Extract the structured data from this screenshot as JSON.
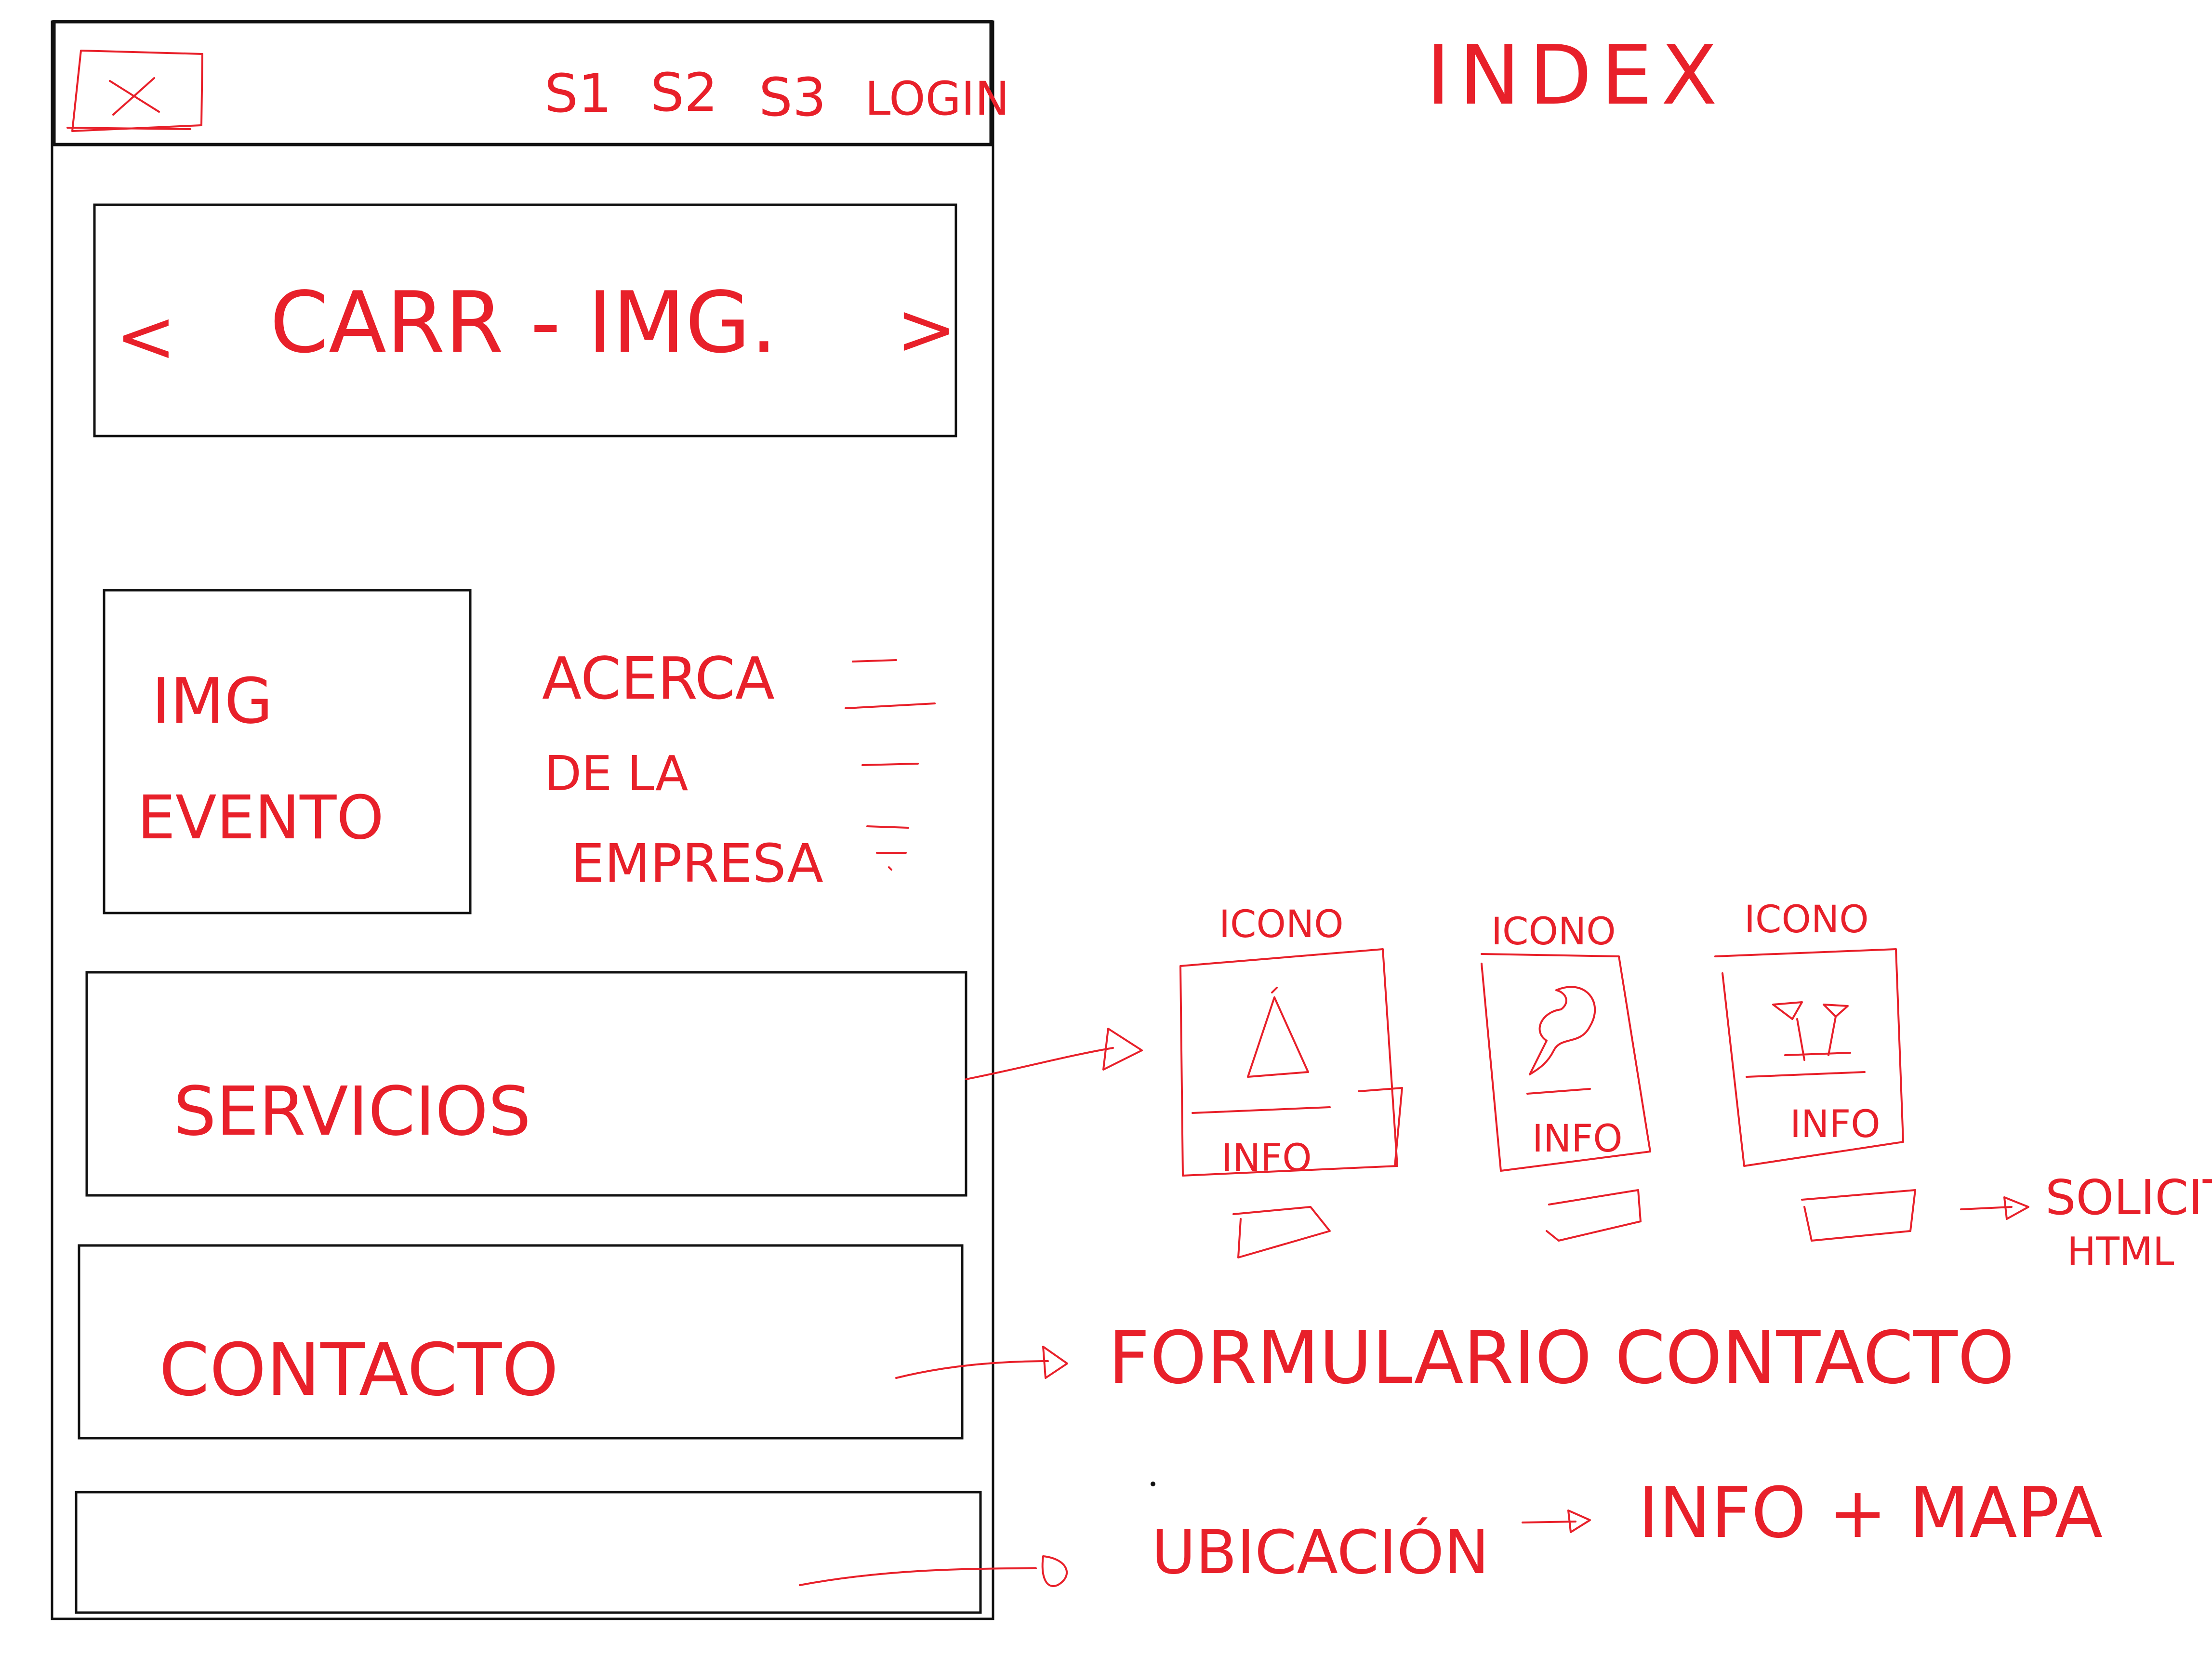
{
  "colors": {
    "ink": "#e8202a",
    "frame": "#111111",
    "background": "#ffffff"
  },
  "page_title": "INDEX",
  "navbar": {
    "logo_icon": "crossed-box-icon",
    "links": [
      "S1",
      "S2",
      "S3",
      "LOGIN"
    ]
  },
  "carousel": {
    "label": "CARR - IMG.",
    "prev_arrow": "<",
    "next_arrow": ">"
  },
  "about": {
    "image_label_line1": "IMG",
    "image_label_line2": "EVENTO",
    "text_line1": "ACERCA",
    "text_line2": "DE LA",
    "text_line3": "EMPRESA"
  },
  "services": {
    "label": "SERVICIOS",
    "cards": [
      {
        "icon_label": "ICONO",
        "info": "INFO",
        "icon": "triangle-icon"
      },
      {
        "icon_label": "ICONO",
        "info": "INFO",
        "icon": "scribble-icon"
      },
      {
        "icon_label": "ICONO",
        "info": "INFO",
        "icon": "glasses-icon"
      }
    ],
    "note_line1": "SOLICITU",
    "note_line2": "HTML"
  },
  "contact": {
    "label": "CONTACTO",
    "note": "FORMULARIO CONTACTO"
  },
  "location": {
    "label": "UBICACIÓN",
    "note": "INFO + MAPA"
  }
}
